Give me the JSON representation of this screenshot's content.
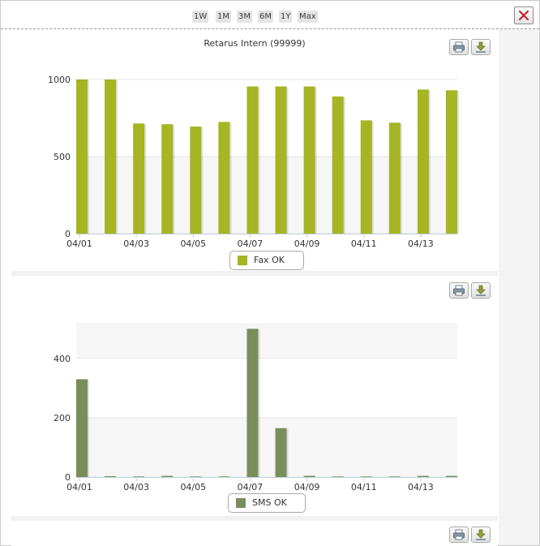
{
  "toolbar": {
    "ranges": [
      "1W",
      "1M",
      "3M",
      "6M",
      "1Y",
      "Max"
    ],
    "close_icon": "close-x-icon"
  },
  "charts": [
    {
      "title": "Retarus Intern (99999)",
      "legend": "Fax OK",
      "color": "#a5b523"
    },
    {
      "title": "",
      "legend": "SMS OK",
      "color": "#7a8e5c"
    }
  ],
  "chart_data": [
    {
      "type": "bar",
      "title": "Retarus Intern (99999)",
      "categories": [
        "04/01",
        "04/02",
        "04/03",
        "04/04",
        "04/05",
        "04/06",
        "04/07",
        "04/08",
        "04/09",
        "04/10",
        "04/11",
        "04/12",
        "04/13",
        "04/14"
      ],
      "x_tick_labels": [
        "04/01",
        "04/03",
        "04/05",
        "04/07",
        "04/09",
        "04/11",
        "04/13"
      ],
      "y_ticks": [
        0,
        500,
        1000
      ],
      "ylim": [
        0,
        1000
      ],
      "series": [
        {
          "name": "Fax OK",
          "values": [
            1000,
            1000,
            715,
            710,
            695,
            725,
            955,
            955,
            955,
            890,
            735,
            720,
            935,
            930
          ]
        }
      ],
      "legend_position": "bottom",
      "grid": true
    },
    {
      "type": "bar",
      "categories": [
        "04/01",
        "04/02",
        "04/03",
        "04/04",
        "04/05",
        "04/06",
        "04/07",
        "04/08",
        "04/09",
        "04/10",
        "04/11",
        "04/12",
        "04/13",
        "04/14"
      ],
      "x_tick_labels": [
        "04/01",
        "04/03",
        "04/05",
        "04/07",
        "04/09",
        "04/11",
        "04/13"
      ],
      "y_ticks": [
        0,
        200,
        400
      ],
      "ylim": [
        0,
        520
      ],
      "series": [
        {
          "name": "SMS OK",
          "values": [
            330,
            3,
            2,
            4,
            2,
            2,
            500,
            165,
            4,
            2,
            2,
            2,
            4,
            4
          ]
        }
      ],
      "legend_position": "bottom",
      "grid": true
    }
  ]
}
